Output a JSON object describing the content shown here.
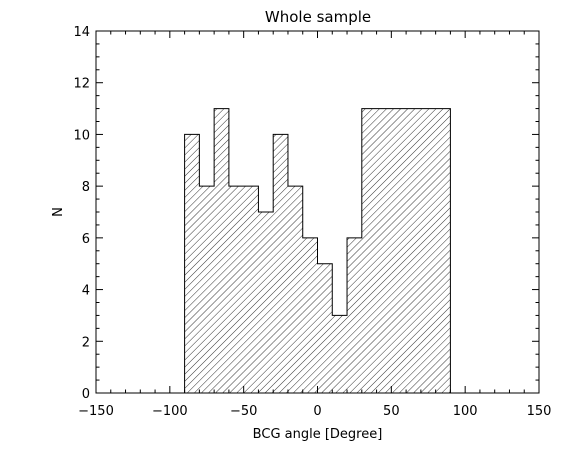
{
  "chart_data": {
    "type": "bar",
    "title": "Whole sample",
    "xlabel": "BCG angle [Degree]",
    "ylabel": "N",
    "xlim": [
      -150,
      150
    ],
    "ylim": [
      0,
      14
    ],
    "x_ticks": [
      -150,
      -100,
      -50,
      0,
      50,
      100,
      150
    ],
    "y_ticks": [
      0,
      2,
      4,
      6,
      8,
      10,
      12,
      14
    ],
    "x_tick_labels": [
      "−150",
      "−100",
      "−50",
      "0",
      "50",
      "100",
      "150"
    ],
    "y_tick_labels": [
      "0",
      "2",
      "4",
      "6",
      "8",
      "10",
      "12",
      "14"
    ],
    "bin_width": 10,
    "bins": [
      {
        "x": -90,
        "y": 10
      },
      {
        "x": -80,
        "y": 8
      },
      {
        "x": -70,
        "y": 11
      },
      {
        "x": -60,
        "y": 8
      },
      {
        "x": -50,
        "y": 8
      },
      {
        "x": -40,
        "y": 7
      },
      {
        "x": -30,
        "y": 10
      },
      {
        "x": -20,
        "y": 8
      },
      {
        "x": -10,
        "y": 6
      },
      {
        "x": 0,
        "y": 5
      },
      {
        "x": 10,
        "y": 3
      },
      {
        "x": 20,
        "y": 6
      },
      {
        "x": 30,
        "y": 11
      },
      {
        "x": 40,
        "y": 11
      },
      {
        "x": 50,
        "y": 11
      },
      {
        "x": 60,
        "y": 11
      },
      {
        "x": 70,
        "y": 11
      },
      {
        "x": 80,
        "y": 11
      }
    ],
    "fill": "diagonal-hatch",
    "grid": false,
    "legend": "none"
  }
}
